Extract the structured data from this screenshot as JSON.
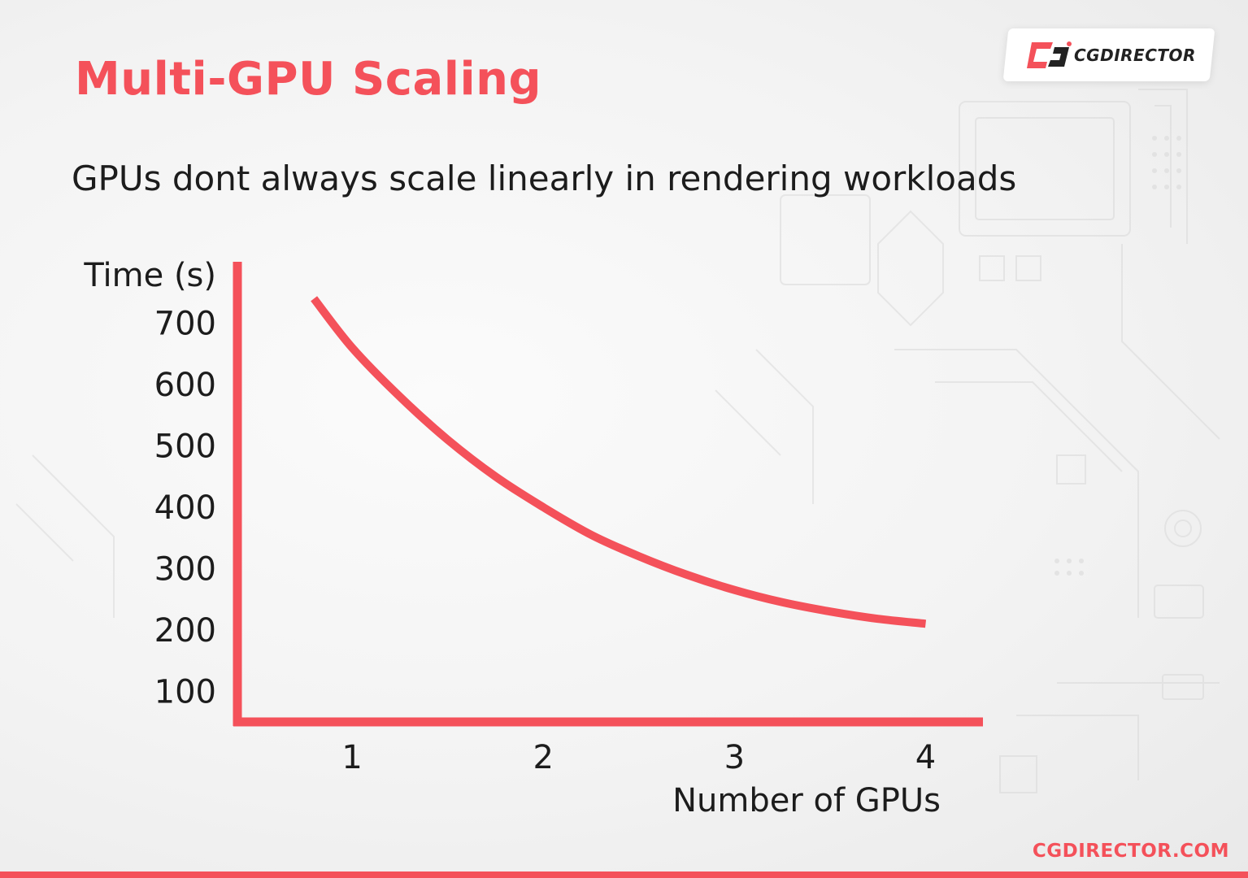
{
  "header": {
    "title": "Multi-GPU Scaling",
    "subtitle": "GPUs dont always scale linearly in rendering workloads"
  },
  "logo": {
    "text": "CGDIRECTOR",
    "icon": "cgdirector-logo-icon"
  },
  "footer": {
    "url": "CGDIRECTOR.COM"
  },
  "colors": {
    "accent": "#f4515a",
    "text": "#1c1c1c"
  },
  "chart_data": {
    "type": "line",
    "title": "",
    "xlabel": "Number of GPUs",
    "ylabel": "Time (s)",
    "x_ticks": [
      1,
      2,
      3,
      4
    ],
    "y_ticks": [
      100,
      200,
      300,
      400,
      500,
      600,
      700
    ],
    "xlim": [
      0.4,
      4.3
    ],
    "ylim": [
      50,
      800
    ],
    "grid": false,
    "legend": "none",
    "series": [
      {
        "x": [
          0.8,
          1.0,
          1.25,
          1.5,
          1.75,
          2.0,
          2.25,
          2.5,
          2.75,
          3.0,
          3.25,
          3.5,
          3.75,
          4.0
        ],
        "y": [
          740,
          660,
          580,
          510,
          450,
          400,
          355,
          320,
          290,
          265,
          245,
          230,
          218,
          210
        ]
      }
    ]
  }
}
